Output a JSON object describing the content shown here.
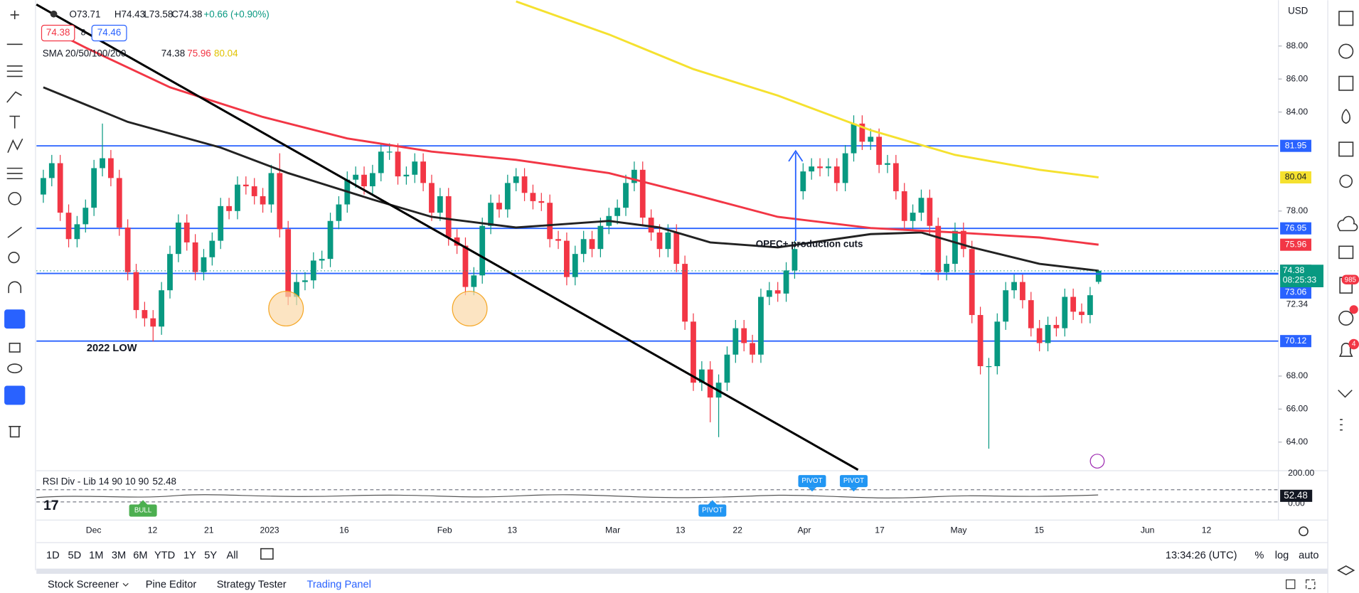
{
  "header": {
    "open": "O73.71",
    "high": "H74.43",
    "low": "L73.58",
    "close": "C74.38",
    "change": "+0.66 (+0.90%)",
    "bid": 74.38,
    "spread": 8,
    "ask": 74.46,
    "indicator": "SMA 20/50/100/200",
    "currency": "USD"
  },
  "chart_data": {
    "type": "candlestick",
    "up_color": "#089981",
    "down_color": "#f23645",
    "open": [
      79.0,
      80.0,
      80.9,
      77.9,
      76.3,
      77.2,
      78.2,
      80.6,
      81.2,
      80.0,
      77.0,
      74.3,
      72.0,
      71.5,
      71.0,
      73.2,
      75.4,
      77.3,
      76.1,
      74.3,
      75.2,
      76.2,
      78.3,
      78.0,
      79.6,
      79.5,
      78.9,
      78.4,
      80.3,
      76.9,
      72.8,
      73.7,
      73.8,
      75.0,
      75.1,
      77.4,
      78.4,
      79.9,
      80.2,
      79.5,
      80.3,
      81.6,
      81.6,
      80.1,
      80.2,
      81.0,
      79.7,
      77.9,
      78.9,
      76.4,
      75.9,
      73.4,
      74.1,
      77.1,
      78.5,
      78.1,
      79.7,
      80.1,
      79.1,
      78.6,
      78.5,
      76.3,
      76.2,
      74.0,
      75.4,
      76.3,
      75.7,
      77.1,
      77.7,
      78.2,
      79.7,
      80.5,
      77.6,
      76.7,
      75.7,
      76.7,
      74.8,
      71.3,
      67.6,
      68.4,
      66.7,
      67.6,
      69.3,
      70.9,
      70.0,
      69.3,
      72.8,
      73.2,
      73.0,
      74.4,
      79.2,
      80.4,
      80.7,
      80.6,
      80.7,
      79.7,
      81.5,
      83.3,
      82.2,
      82.5,
      80.8,
      80.9,
      79.2,
      77.4,
      77.9,
      78.8,
      77.1,
      74.3,
      74.8,
      76.8,
      75.7,
      71.7,
      68.6,
      68.6,
      71.3,
      73.2,
      73.7,
      72.6,
      70.9,
      70.0,
      71.1,
      70.9,
      72.8,
      71.9,
      71.7,
      73.71
    ],
    "high": [
      80.5,
      81.4,
      81.4,
      78.4,
      77.7,
      78.7,
      81.1,
      83.3,
      81.7,
      80.5,
      77.5,
      74.8,
      72.5,
      72.0,
      73.7,
      75.9,
      77.8,
      77.8,
      76.6,
      75.7,
      76.7,
      78.8,
      78.8,
      80.1,
      80.1,
      80.0,
      79.4,
      80.8,
      81.5,
      77.4,
      74.2,
      74.3,
      75.5,
      75.6,
      77.9,
      78.9,
      80.4,
      80.7,
      80.7,
      80.8,
      82.1,
      82.1,
      82.1,
      80.7,
      81.5,
      81.5,
      80.2,
      79.4,
      79.4,
      76.9,
      76.4,
      74.6,
      77.6,
      79.0,
      79.0,
      80.2,
      80.6,
      80.6,
      79.6,
      79.1,
      79.0,
      76.8,
      76.7,
      75.9,
      76.8,
      76.8,
      77.6,
      78.2,
      78.7,
      80.2,
      81.0,
      81.0,
      78.1,
      77.2,
      77.2,
      77.2,
      75.3,
      71.8,
      68.9,
      68.9,
      68.1,
      69.8,
      71.4,
      71.4,
      70.5,
      73.3,
      73.7,
      73.7,
      74.9,
      76.2,
      80.9,
      81.2,
      81.2,
      81.2,
      81.2,
      82.0,
      83.8,
      83.8,
      83.0,
      83.0,
      81.4,
      81.4,
      79.7,
      78.4,
      79.3,
      79.3,
      77.6,
      75.3,
      77.3,
      77.3,
      76.2,
      72.2,
      69.1,
      71.8,
      73.7,
      74.2,
      74.2,
      73.1,
      71.4,
      71.6,
      71.6,
      73.3,
      73.3,
      72.4,
      73.4,
      74.43
    ],
    "low": [
      78.5,
      79.5,
      77.4,
      75.8,
      75.8,
      76.7,
      77.7,
      80.1,
      79.5,
      76.5,
      73.8,
      71.5,
      71.0,
      70.1,
      70.5,
      72.7,
      74.9,
      75.6,
      73.8,
      73.8,
      74.7,
      75.7,
      77.5,
      77.5,
      79.0,
      78.4,
      77.9,
      77.9,
      76.4,
      72.3,
      72.3,
      73.2,
      73.3,
      74.5,
      74.6,
      76.9,
      77.9,
      79.4,
      79.0,
      79.0,
      79.8,
      81.1,
      79.6,
      79.6,
      79.7,
      79.2,
      77.4,
      77.4,
      75.9,
      75.4,
      72.9,
      72.9,
      73.6,
      76.6,
      77.6,
      77.6,
      79.2,
      78.6,
      78.1,
      78.0,
      75.8,
      75.7,
      73.5,
      73.5,
      74.9,
      75.2,
      75.2,
      76.6,
      77.2,
      77.7,
      79.2,
      77.1,
      76.2,
      75.2,
      75.2,
      74.3,
      70.8,
      67.1,
      67.1,
      65.2,
      64.3,
      67.1,
      68.8,
      69.5,
      68.8,
      68.8,
      72.3,
      72.5,
      72.5,
      73.9,
      78.7,
      79.9,
      80.1,
      80.1,
      79.2,
      79.2,
      81.0,
      81.7,
      81.7,
      80.3,
      80.3,
      78.7,
      76.9,
      76.9,
      77.4,
      76.6,
      73.8,
      73.8,
      74.3,
      75.2,
      71.2,
      68.1,
      63.6,
      68.1,
      70.8,
      72.7,
      72.1,
      70.4,
      69.5,
      69.5,
      70.4,
      70.4,
      71.4,
      71.2,
      71.2,
      73.58
    ],
    "close": [
      80.0,
      80.9,
      77.9,
      76.3,
      77.2,
      78.2,
      80.6,
      81.2,
      80.0,
      77.0,
      74.3,
      72.0,
      71.5,
      71.0,
      73.2,
      75.4,
      77.3,
      76.1,
      74.3,
      75.2,
      76.2,
      78.3,
      78.0,
      79.6,
      79.5,
      78.9,
      78.4,
      80.3,
      76.9,
      72.8,
      73.7,
      73.8,
      75.0,
      75.1,
      77.4,
      78.4,
      79.9,
      80.2,
      79.5,
      80.3,
      81.6,
      81.6,
      80.1,
      80.2,
      81.0,
      79.7,
      77.9,
      78.9,
      76.4,
      75.9,
      73.4,
      74.1,
      77.1,
      78.5,
      78.1,
      79.7,
      80.1,
      79.1,
      78.6,
      78.5,
      76.3,
      76.2,
      74.0,
      75.4,
      76.3,
      75.7,
      77.1,
      77.7,
      78.2,
      79.7,
      80.5,
      77.6,
      76.7,
      75.7,
      76.7,
      74.8,
      71.3,
      67.6,
      68.4,
      66.7,
      67.6,
      69.3,
      70.9,
      70.0,
      69.3,
      72.8,
      73.2,
      73.0,
      74.4,
      75.7,
      80.4,
      80.7,
      80.6,
      80.7,
      79.7,
      81.5,
      83.3,
      82.2,
      82.5,
      80.8,
      80.9,
      79.2,
      77.4,
      77.9,
      78.8,
      77.1,
      74.3,
      74.8,
      76.8,
      75.7,
      71.7,
      68.6,
      68.6,
      71.3,
      73.2,
      73.7,
      72.6,
      70.9,
      70.0,
      71.1,
      70.9,
      72.8,
      71.9,
      71.7,
      72.9,
      74.38
    ],
    "moving_averages": [
      {
        "color": "#222222",
        "x": [
          0,
          10,
          21,
          29,
          39,
          46,
          56,
          67,
          73,
          79,
          87,
          98,
          104,
          110,
          118,
          125
        ],
        "values": [
          85.5,
          83.4,
          81.85,
          80.3,
          78.7,
          77.65,
          77.0,
          77.4,
          77.0,
          76.1,
          75.8,
          76.6,
          76.7,
          75.8,
          74.8,
          74.38
        ]
      },
      {
        "color": "#f23645",
        "x": [
          0,
          5,
          15,
          26,
          36,
          46,
          56,
          67,
          77,
          87,
          98,
          108,
          118,
          125
        ],
        "values": [
          89.2,
          87.9,
          85.5,
          83.7,
          82.4,
          81.6,
          81.1,
          80.3,
          79.0,
          77.65,
          76.97,
          76.7,
          76.4,
          75.96
        ]
      },
      {
        "color": "#f5e12f",
        "x": [
          56,
          67,
          77,
          87,
          98,
          108,
          118,
          125
        ],
        "values": [
          90.7,
          88.7,
          86.6,
          85.0,
          82.9,
          81.4,
          80.5,
          80.04
        ]
      }
    ],
    "levels": [
      81.95,
      76.95,
      74.22,
      70.12
    ],
    "level_color": "#2962ff",
    "price_labels": [
      73.06,
      72.34
    ],
    "countdown": "08:25:33",
    "ylim": [
      62.32,
      90.78
    ],
    "yticks": [
      {
        "value": 88,
        "label": "88.00"
      },
      {
        "value": 86,
        "label": "86.00"
      },
      {
        "value": 84,
        "label": "84.00"
      },
      {
        "value": 78,
        "label": "78.00"
      },
      {
        "value": 68,
        "label": "68.00"
      },
      {
        "value": 66,
        "label": "66.00"
      },
      {
        "value": 64,
        "label": "64.00"
      }
    ],
    "xticks": [
      "Dec",
      "12",
      "21",
      "2023",
      "16",
      "Feb",
      "13",
      "Mar",
      "13",
      "22",
      "Apr",
      "17",
      "May",
      "15",
      "Jun",
      "12"
    ],
    "annotations": [
      "OPEC+ production cuts",
      "2022 LOW"
    ]
  },
  "rsi": {
    "title": "RSI Div - Lib 14 90 10 90",
    "value": 52.48,
    "axis_labels": [
      "200.00",
      "0.00"
    ],
    "signals": [
      "BULL",
      "PIVOT",
      "PIVOT",
      "PIVOT"
    ]
  },
  "toolbar": {
    "ranges": [
      "1D",
      "5D",
      "1M",
      "3M",
      "6M",
      "YTD",
      "1Y",
      "5Y",
      "All"
    ],
    "clock": "13:34:26 (UTC)",
    "scale_options": [
      "%",
      "log",
      "auto"
    ]
  },
  "tabs": [
    "Stock Screener",
    "Pine Editor",
    "Strategy Tester",
    "Trading Panel"
  ],
  "badges": {
    "alerts": "985",
    "notifications": "4"
  }
}
